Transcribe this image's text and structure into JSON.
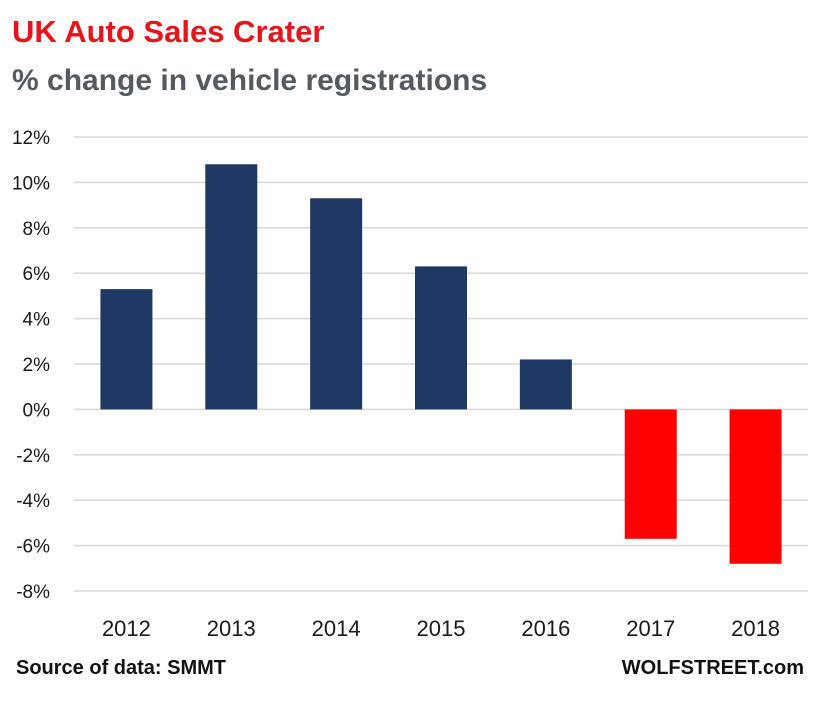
{
  "chart_data": {
    "type": "bar",
    "title": "UK Auto Sales Crater",
    "subtitle": "% change in vehicle registrations",
    "categories": [
      "2012",
      "2013",
      "2014",
      "2015",
      "2016",
      "2017",
      "2018"
    ],
    "values": [
      5.3,
      10.8,
      9.3,
      6.3,
      2.2,
      -5.7,
      -6.8
    ],
    "ylim": [
      -8,
      12
    ],
    "yticks": [
      12,
      10,
      8,
      6,
      4,
      2,
      0,
      -2,
      -4,
      -6,
      -8
    ],
    "ytick_labels": [
      "12%",
      "10%",
      "8%",
      "6%",
      "4%",
      "2%",
      "0%",
      "-2%",
      "-4%",
      "-6%",
      "-8%"
    ],
    "grid": true,
    "colors": {
      "positive": "#1f3864",
      "negative": "#ff0000",
      "grid": "#d9d9d9"
    }
  },
  "footer": {
    "source": "Source of data: SMMT",
    "brand": "WOLFSTREET.com"
  }
}
